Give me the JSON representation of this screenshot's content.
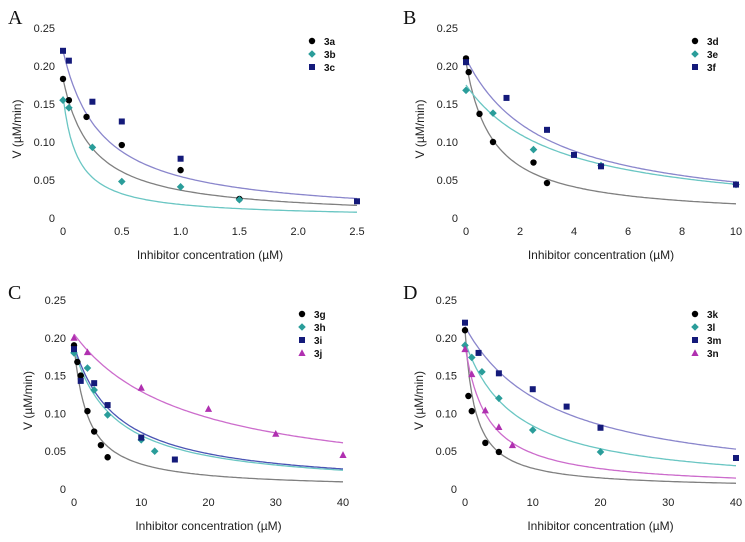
{
  "chart_data": [
    {
      "type": "scatter",
      "panel": "A",
      "xlabel": "Inhibitor concentration (µM)",
      "ylabel": "V (µM/min)",
      "xlim": [
        0,
        2.5
      ],
      "ylim": [
        0,
        0.25
      ],
      "xticks": [
        0,
        0.5,
        1.0,
        1.5,
        2.0,
        2.5
      ],
      "xtick_labels": [
        "0",
        "0.5",
        "1.0",
        "1.5",
        "2.0",
        "2.5"
      ],
      "yticks": [
        0,
        0.05,
        0.1,
        0.15,
        0.2,
        0.25
      ],
      "ytick_labels": [
        "0",
        "0.05",
        "0.10",
        "0.15",
        "0.20",
        "0.25"
      ],
      "legend_position": "top-right",
      "series": [
        {
          "name": "3a",
          "marker": "circle",
          "color": "#000000",
          "line_color": "#808080",
          "x": [
            0,
            0.05,
            0.2,
            0.5,
            1.0,
            1.5
          ],
          "y": [
            0.183,
            0.155,
            0.133,
            0.096,
            0.063,
            0.025
          ],
          "fit": {
            "v0": 0.183,
            "k": 0.25
          }
        },
        {
          "name": "3b",
          "marker": "diamond",
          "color": "#2a9d9a",
          "line_color": "#6ac6c3",
          "x": [
            0,
            0.05,
            0.25,
            0.5,
            1.0,
            1.5
          ],
          "y": [
            0.155,
            0.145,
            0.093,
            0.048,
            0.041,
            0.024
          ],
          "fit": {
            "v0": 0.16,
            "k": 0.125
          }
        },
        {
          "name": "3c",
          "marker": "square",
          "color": "#141a7a",
          "line_color": "#8a86cc",
          "x": [
            0,
            0.05,
            0.25,
            0.5,
            1.0,
            2.5
          ],
          "y": [
            0.22,
            0.207,
            0.153,
            0.127,
            0.078,
            0.022
          ],
          "fit": {
            "v0": 0.22,
            "k": 0.33
          }
        }
      ]
    },
    {
      "type": "scatter",
      "panel": "B",
      "xlabel": "Inhibitor concentration (µM)",
      "ylabel": "V (µM/min)",
      "xlim": [
        0,
        10
      ],
      "ylim": [
        0,
        0.25
      ],
      "xticks": [
        0,
        2,
        4,
        6,
        8,
        10
      ],
      "xtick_labels": [
        "0",
        "2",
        "4",
        "6",
        "8",
        "10"
      ],
      "yticks": [
        0,
        0.05,
        0.1,
        0.15,
        0.2,
        0.25
      ],
      "ytick_labels": [
        "0",
        "0.05",
        "0.10",
        "0.15",
        "0.20",
        "0.25"
      ],
      "legend_position": "top-right",
      "series": [
        {
          "name": "3d",
          "marker": "circle",
          "color": "#000000",
          "line_color": "#808080",
          "x": [
            0,
            0.1,
            0.5,
            1.0,
            2.5,
            3.0
          ],
          "y": [
            0.21,
            0.192,
            0.137,
            0.1,
            0.073,
            0.046
          ],
          "fit": {
            "v0": 0.205,
            "k": 1.0
          }
        },
        {
          "name": "3e",
          "marker": "diamond",
          "color": "#2a9d9a",
          "line_color": "#6ac6c3",
          "x": [
            0,
            1.0,
            2.5,
            5.0,
            10.0
          ],
          "y": [
            0.168,
            0.138,
            0.09,
            0.069,
            0.044
          ],
          "fit": {
            "v0": 0.175,
            "k": 3.4
          }
        },
        {
          "name": "3f",
          "marker": "square",
          "color": "#141a7a",
          "line_color": "#8a86cc",
          "x": [
            0,
            1.5,
            3.0,
            4.0,
            5.0,
            10.0
          ],
          "y": [
            0.205,
            0.158,
            0.116,
            0.083,
            0.068,
            0.044
          ],
          "fit": {
            "v0": 0.21,
            "k": 2.9
          }
        }
      ]
    },
    {
      "type": "scatter",
      "panel": "C",
      "xlabel": "Inhibitor concentration (µM)",
      "ylabel": "V (µM/min)",
      "xlim": [
        0,
        40
      ],
      "ylim": [
        0,
        0.25
      ],
      "xticks": [
        0,
        10,
        20,
        30,
        40
      ],
      "xtick_labels": [
        "0",
        "10",
        "20",
        "30",
        "40"
      ],
      "yticks": [
        0,
        0.05,
        0.1,
        0.15,
        0.2,
        0.25
      ],
      "ytick_labels": [
        "0",
        "0.05",
        "0.10",
        "0.15",
        "0.20",
        "0.25"
      ],
      "legend_position": "top-right",
      "series": [
        {
          "name": "3g",
          "marker": "circle",
          "color": "#000000",
          "line_color": "#808080",
          "x": [
            0,
            0.5,
            1.0,
            2.0,
            3.0,
            4.0,
            5.0
          ],
          "y": [
            0.19,
            0.168,
            0.15,
            0.103,
            0.076,
            0.058,
            0.042
          ],
          "fit": {
            "v0": 0.19,
            "k": 2.1
          }
        },
        {
          "name": "3h",
          "marker": "diamond",
          "color": "#2a9d9a",
          "line_color": "#6ac6c3",
          "x": [
            0,
            2.0,
            3.0,
            5.0,
            10.0,
            12.0
          ],
          "y": [
            0.18,
            0.16,
            0.131,
            0.098,
            0.065,
            0.05
          ],
          "fit": {
            "v0": 0.185,
            "k": 6.2
          }
        },
        {
          "name": "3i",
          "marker": "square",
          "color": "#141a7a",
          "line_color": "#4a55b4",
          "x": [
            0,
            1.0,
            3.0,
            5.0,
            10.0,
            15.0
          ],
          "y": [
            0.185,
            0.143,
            0.14,
            0.111,
            0.068,
            0.039
          ],
          "fit": {
            "v0": 0.19,
            "k": 6.5
          }
        },
        {
          "name": "3j",
          "marker": "triangle",
          "color": "#b030b0",
          "line_color": "#cc6ccc",
          "x": [
            0,
            2.0,
            10.0,
            20.0,
            30.0,
            40.0
          ],
          "y": [
            0.2,
            0.181,
            0.134,
            0.106,
            0.073,
            0.045
          ],
          "fit": {
            "v0": 0.205,
            "k": 17.0
          }
        }
      ]
    },
    {
      "type": "scatter",
      "panel": "D",
      "xlabel": "Inhibitor concentration (µM)",
      "ylabel": "V (µM/min)",
      "xlim": [
        0,
        40
      ],
      "ylim": [
        0,
        0.25
      ],
      "xticks": [
        0,
        10,
        20,
        30,
        40
      ],
      "xtick_labels": [
        "0",
        "10",
        "20",
        "30",
        "40"
      ],
      "yticks": [
        0,
        0.05,
        0.1,
        0.15,
        0.2,
        0.25
      ],
      "ytick_labels": [
        "0",
        "0.05",
        "0.10",
        "0.15",
        "0.20",
        "0.25"
      ],
      "legend_position": "top-right",
      "series": [
        {
          "name": "3k",
          "marker": "circle",
          "color": "#000000",
          "line_color": "#808080",
          "x": [
            0,
            0.5,
            1.0,
            3.0,
            5.0
          ],
          "y": [
            0.21,
            0.123,
            0.103,
            0.061,
            0.049
          ],
          "fit": {
            "v0": 0.21,
            "k": 1.5
          }
        },
        {
          "name": "3l",
          "marker": "diamond",
          "color": "#2a9d9a",
          "line_color": "#6ac6c3",
          "x": [
            0,
            1.0,
            2.5,
            5.0,
            10.0,
            20.0
          ],
          "y": [
            0.19,
            0.174,
            0.155,
            0.12,
            0.078,
            0.049
          ],
          "fit": {
            "v0": 0.195,
            "k": 7.5
          }
        },
        {
          "name": "3m",
          "marker": "square",
          "color": "#141a7a",
          "line_color": "#8a86cc",
          "x": [
            0,
            2.0,
            5.0,
            10.0,
            15.0,
            20.0,
            40.0
          ],
          "y": [
            0.22,
            0.18,
            0.153,
            0.132,
            0.109,
            0.081,
            0.041
          ],
          "fit": {
            "v0": 0.215,
            "k": 13.0
          }
        },
        {
          "name": "3n",
          "marker": "triangle",
          "color": "#b030b0",
          "line_color": "#cc6ccc",
          "x": [
            0,
            1.0,
            3.0,
            5.0,
            7.0
          ],
          "y": [
            0.185,
            0.152,
            0.104,
            0.082,
            0.058
          ],
          "fit": {
            "v0": 0.19,
            "k": 3.3
          }
        }
      ]
    }
  ]
}
